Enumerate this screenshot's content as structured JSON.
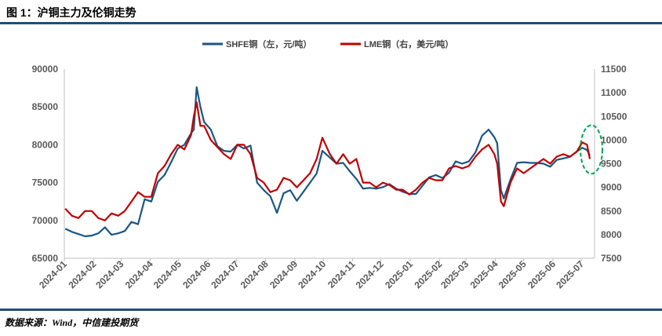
{
  "figure_title": "图 1：沪铜主力及伦铜走势",
  "source": "数据来源：Wind，中信建投期货",
  "chart_data": {
    "type": "line",
    "title": "",
    "legend": [
      {
        "name": "SHFE铜（左，元/吨）",
        "color": "#1a5684"
      },
      {
        "name": "LME铜（右，美元/吨）",
        "color": "#c00000"
      }
    ],
    "legend_placement": "top-center",
    "grid": false,
    "x_ticks": [
      "2024-01",
      "2024-02",
      "2024-03",
      "2024-04",
      "2024-05",
      "2024-06",
      "2024-07",
      "2024-08",
      "2024-09",
      "2024-10",
      "2024-11",
      "2024-12",
      "2025-01",
      "2025-02",
      "2025-03",
      "2025-04",
      "2025-05",
      "2025-06",
      "2025-07"
    ],
    "y_left": {
      "ticks": [
        "65000",
        "70000",
        "75000",
        "80000",
        "85000",
        "90000"
      ],
      "lim": [
        65000,
        90000
      ]
    },
    "y_right": {
      "ticks": [
        "7500",
        "8000",
        "8500",
        "9000",
        "9500",
        "10000",
        "10500",
        "11000",
        "11500"
      ],
      "lim": [
        7500,
        11500
      ]
    },
    "x_range": [
      "2024-01-01",
      "2025-07-15"
    ],
    "series": [
      {
        "name": "SHFE铜（左，元/吨）",
        "axis": "left",
        "color": "#1a5684",
        "points": [
          [
            "2024-01-02",
            68900
          ],
          [
            "2024-01-09",
            68500
          ],
          [
            "2024-01-16",
            68200
          ],
          [
            "2024-01-23",
            67900
          ],
          [
            "2024-01-30",
            68000
          ],
          [
            "2024-02-06",
            68300
          ],
          [
            "2024-02-13",
            69100
          ],
          [
            "2024-02-20",
            68100
          ],
          [
            "2024-02-27",
            68300
          ],
          [
            "2024-03-05",
            68600
          ],
          [
            "2024-03-12",
            69800
          ],
          [
            "2024-03-19",
            69500
          ],
          [
            "2024-03-26",
            72800
          ],
          [
            "2024-04-02",
            72500
          ],
          [
            "2024-04-09",
            75100
          ],
          [
            "2024-04-16",
            76000
          ],
          [
            "2024-04-23",
            77700
          ],
          [
            "2024-04-30",
            79500
          ],
          [
            "2024-05-07",
            80000
          ],
          [
            "2024-05-14",
            81500
          ],
          [
            "2024-05-17",
            82000
          ],
          [
            "2024-05-20",
            87600
          ],
          [
            "2024-05-24",
            85000
          ],
          [
            "2024-05-28",
            83000
          ],
          [
            "2024-06-04",
            82000
          ],
          [
            "2024-06-11",
            79800
          ],
          [
            "2024-06-18",
            79200
          ],
          [
            "2024-06-25",
            79100
          ],
          [
            "2024-07-02",
            80000
          ],
          [
            "2024-07-09",
            79500
          ],
          [
            "2024-07-16",
            79900
          ],
          [
            "2024-07-23",
            75000
          ],
          [
            "2024-07-30",
            74000
          ],
          [
            "2024-08-06",
            73200
          ],
          [
            "2024-08-13",
            71000
          ],
          [
            "2024-08-20",
            73600
          ],
          [
            "2024-08-27",
            74000
          ],
          [
            "2024-09-03",
            72600
          ],
          [
            "2024-09-10",
            73800
          ],
          [
            "2024-09-17",
            75000
          ],
          [
            "2024-09-24",
            76200
          ],
          [
            "2024-09-30",
            79200
          ],
          [
            "2024-10-08",
            78300
          ],
          [
            "2024-10-15",
            77500
          ],
          [
            "2024-10-22",
            77600
          ],
          [
            "2024-10-29",
            76500
          ],
          [
            "2024-11-05",
            75500
          ],
          [
            "2024-11-12",
            74200
          ],
          [
            "2024-11-19",
            74300
          ],
          [
            "2024-11-26",
            74200
          ],
          [
            "2024-12-03",
            74400
          ],
          [
            "2024-12-10",
            74800
          ],
          [
            "2024-12-17",
            74200
          ],
          [
            "2024-12-24",
            73800
          ],
          [
            "2024-12-31",
            73500
          ],
          [
            "2025-01-07",
            73500
          ],
          [
            "2025-01-14",
            74600
          ],
          [
            "2025-01-21",
            75700
          ],
          [
            "2025-01-28",
            76000
          ],
          [
            "2025-02-04",
            75600
          ],
          [
            "2025-02-11",
            76300
          ],
          [
            "2025-02-18",
            77800
          ],
          [
            "2025-02-25",
            77500
          ],
          [
            "2025-03-04",
            77800
          ],
          [
            "2025-03-11",
            79000
          ],
          [
            "2025-03-18",
            81200
          ],
          [
            "2025-03-25",
            82000
          ],
          [
            "2025-03-31",
            81000
          ],
          [
            "2025-04-03",
            80200
          ],
          [
            "2025-04-07",
            74000
          ],
          [
            "2025-04-10",
            72900
          ],
          [
            "2025-04-17",
            75400
          ],
          [
            "2025-04-24",
            77600
          ],
          [
            "2025-05-01",
            77700
          ],
          [
            "2025-05-08",
            77600
          ],
          [
            "2025-05-15",
            77600
          ],
          [
            "2025-05-22",
            77500
          ],
          [
            "2025-05-29",
            77100
          ],
          [
            "2025-06-05",
            78000
          ],
          [
            "2025-06-12",
            78200
          ],
          [
            "2025-06-19",
            78400
          ],
          [
            "2025-06-26",
            79100
          ],
          [
            "2025-07-02",
            79600
          ],
          [
            "2025-07-07",
            79300
          ],
          [
            "2025-07-10",
            78600
          ]
        ]
      },
      {
        "name": "LME铜（右，美元/吨）",
        "axis": "right",
        "color": "#c00000",
        "points": [
          [
            "2024-01-02",
            8550
          ],
          [
            "2024-01-09",
            8400
          ],
          [
            "2024-01-16",
            8350
          ],
          [
            "2024-01-23",
            8500
          ],
          [
            "2024-01-30",
            8500
          ],
          [
            "2024-02-06",
            8350
          ],
          [
            "2024-02-13",
            8300
          ],
          [
            "2024-02-20",
            8450
          ],
          [
            "2024-02-27",
            8400
          ],
          [
            "2024-03-05",
            8500
          ],
          [
            "2024-03-12",
            8700
          ],
          [
            "2024-03-19",
            8900
          ],
          [
            "2024-03-26",
            8800
          ],
          [
            "2024-04-02",
            8800
          ],
          [
            "2024-04-09",
            9300
          ],
          [
            "2024-04-16",
            9450
          ],
          [
            "2024-04-23",
            9700
          ],
          [
            "2024-04-30",
            9900
          ],
          [
            "2024-05-07",
            9800
          ],
          [
            "2024-05-14",
            10100
          ],
          [
            "2024-05-17",
            10500
          ],
          [
            "2024-05-20",
            10800
          ],
          [
            "2024-05-24",
            10300
          ],
          [
            "2024-05-28",
            10300
          ],
          [
            "2024-06-04",
            10000
          ],
          [
            "2024-06-11",
            9850
          ],
          [
            "2024-06-18",
            9700
          ],
          [
            "2024-06-25",
            9600
          ],
          [
            "2024-07-02",
            9900
          ],
          [
            "2024-07-09",
            9900
          ],
          [
            "2024-07-16",
            9700
          ],
          [
            "2024-07-23",
            9200
          ],
          [
            "2024-07-30",
            9100
          ],
          [
            "2024-08-06",
            8900
          ],
          [
            "2024-08-13",
            8950
          ],
          [
            "2024-08-20",
            9200
          ],
          [
            "2024-08-27",
            9150
          ],
          [
            "2024-09-03",
            9000
          ],
          [
            "2024-09-10",
            9150
          ],
          [
            "2024-09-17",
            9300
          ],
          [
            "2024-09-24",
            9600
          ],
          [
            "2024-09-30",
            10050
          ],
          [
            "2024-10-08",
            9700
          ],
          [
            "2024-10-15",
            9500
          ],
          [
            "2024-10-22",
            9700
          ],
          [
            "2024-10-29",
            9500
          ],
          [
            "2024-11-05",
            9600
          ],
          [
            "2024-11-12",
            9100
          ],
          [
            "2024-11-19",
            9100
          ],
          [
            "2024-11-26",
            9000
          ],
          [
            "2024-12-03",
            9100
          ],
          [
            "2024-12-10",
            9050
          ],
          [
            "2024-12-17",
            8950
          ],
          [
            "2024-12-24",
            8950
          ],
          [
            "2024-12-31",
            8850
          ],
          [
            "2025-01-07",
            8950
          ],
          [
            "2025-01-14",
            9100
          ],
          [
            "2025-01-21",
            9200
          ],
          [
            "2025-01-28",
            9150
          ],
          [
            "2025-02-04",
            9150
          ],
          [
            "2025-02-11",
            9400
          ],
          [
            "2025-02-18",
            9450
          ],
          [
            "2025-02-25",
            9400
          ],
          [
            "2025-03-04",
            9450
          ],
          [
            "2025-03-11",
            9650
          ],
          [
            "2025-03-18",
            9800
          ],
          [
            "2025-03-25",
            9900
          ],
          [
            "2025-03-31",
            9700
          ],
          [
            "2025-04-03",
            9500
          ],
          [
            "2025-04-07",
            8700
          ],
          [
            "2025-04-10",
            8600
          ],
          [
            "2025-04-17",
            9100
          ],
          [
            "2025-04-24",
            9400
          ],
          [
            "2025-05-01",
            9300
          ],
          [
            "2025-05-08",
            9400
          ],
          [
            "2025-05-15",
            9500
          ],
          [
            "2025-05-22",
            9600
          ],
          [
            "2025-05-29",
            9500
          ],
          [
            "2025-06-05",
            9650
          ],
          [
            "2025-06-12",
            9700
          ],
          [
            "2025-06-19",
            9650
          ],
          [
            "2025-06-26",
            9750
          ],
          [
            "2025-07-02",
            9950
          ],
          [
            "2025-07-07",
            9900
          ],
          [
            "2025-07-10",
            9600
          ]
        ]
      }
    ],
    "annotation": {
      "type": "dashed-ellipse",
      "color": "#00a651",
      "x": "2025-07-10",
      "y_right": 9800
    }
  }
}
